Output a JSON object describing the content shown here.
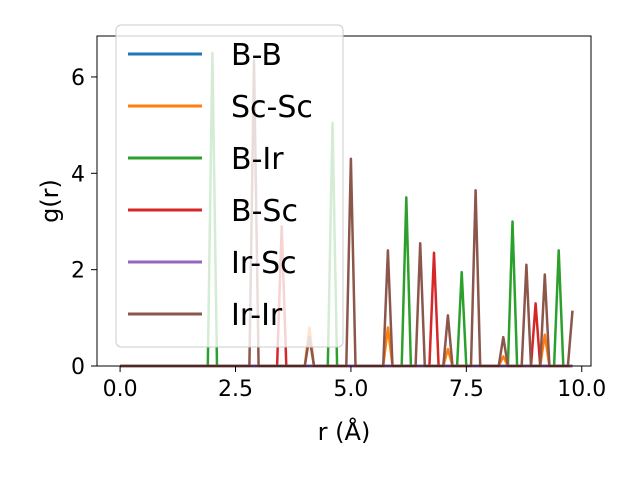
{
  "chart_data": {
    "type": "line",
    "xlabel": "r (Å)",
    "ylabel": "g(r)",
    "xlim": [
      -0.5,
      10.2
    ],
    "ylim": [
      0,
      6.85
    ],
    "xticks": [
      0.0,
      2.5,
      5.0,
      7.5,
      10.0
    ],
    "xtick_labels": [
      "0.0",
      "2.5",
      "5.0",
      "7.5",
      "10.0"
    ],
    "yticks": [
      0,
      2,
      4,
      6
    ],
    "ytick_labels": [
      "0",
      "2",
      "4",
      "6"
    ],
    "grid": false,
    "legend_position": "upper-left",
    "series": [
      {
        "name": "B-B",
        "color": "#1f77b4",
        "peaks": []
      },
      {
        "name": "Sc-Sc",
        "color": "#ff7f0e",
        "peaks": [
          [
            4.1,
            0.8
          ],
          [
            5.8,
            0.8
          ],
          [
            7.1,
            0.35
          ],
          [
            8.3,
            0.2
          ],
          [
            9.2,
            0.65
          ]
        ]
      },
      {
        "name": "B-Ir",
        "color": "#2ca02c",
        "peaks": [
          [
            2.0,
            6.5
          ],
          [
            4.6,
            5.05
          ],
          [
            6.2,
            3.5
          ],
          [
            7.4,
            1.95
          ],
          [
            8.5,
            3.0
          ],
          [
            9.5,
            2.4
          ]
        ]
      },
      {
        "name": "B-Sc",
        "color": "#d62728",
        "peaks": [
          [
            3.5,
            2.9
          ],
          [
            6.8,
            2.35
          ],
          [
            9.0,
            1.3
          ]
        ]
      },
      {
        "name": "Ir-Sc",
        "color": "#9467bd",
        "peaks": []
      },
      {
        "name": "Ir-Ir",
        "color": "#8c564b",
        "peaks": [
          [
            2.9,
            6.35
          ],
          [
            4.1,
            0.6
          ],
          [
            5.0,
            4.3
          ],
          [
            5.8,
            2.4
          ],
          [
            6.5,
            2.55
          ],
          [
            7.1,
            1.05
          ],
          [
            7.7,
            3.65
          ],
          [
            8.3,
            0.6
          ],
          [
            8.8,
            2.1
          ],
          [
            9.2,
            1.9
          ],
          [
            9.8,
            1.15
          ]
        ]
      }
    ]
  }
}
